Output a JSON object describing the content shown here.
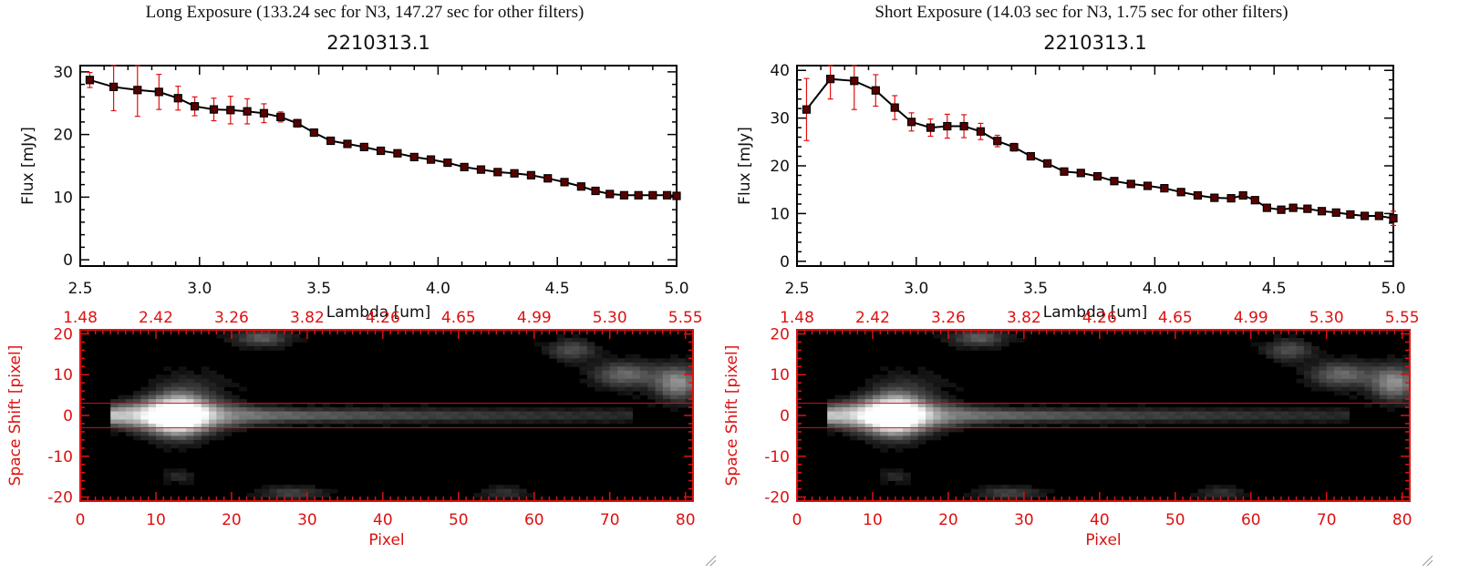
{
  "panels": [
    {
      "header": "Long Exposure (133.24 sec for N3, 147.27 sec for other filters)"
    },
    {
      "header": "Short Exposure (14.03 sec for N3, 1.75 sec for other filters)"
    }
  ],
  "colors": {
    "spectrum_line": "#000000",
    "marker": "#5a0000",
    "error_bar": "#e01010",
    "image_axes": "#dd1111",
    "aperture_line": "#dd1111"
  },
  "chart_data": [
    {
      "type": "line",
      "title": "2210313.1",
      "xlabel": "Lambda [um]",
      "ylabel": "Flux [mJy]",
      "xlim": [
        2.5,
        5.0
      ],
      "ylim": [
        -1,
        31
      ],
      "x_ticks": [
        "2.5",
        "3.0",
        "3.5",
        "4.0",
        "4.5",
        "5.0"
      ],
      "y_ticks": [
        "0",
        "10",
        "20",
        "30"
      ],
      "series": [
        {
          "x": [
            2.54,
            2.64,
            2.74,
            2.83,
            2.91,
            2.98,
            3.06,
            3.13,
            3.2,
            3.27,
            3.34,
            3.41,
            3.48,
            3.55,
            3.62,
            3.69,
            3.76,
            3.83,
            3.9,
            3.97,
            4.04,
            4.11,
            4.18,
            4.25,
            4.32,
            4.39,
            4.46,
            4.53,
            4.6,
            4.66,
            4.72,
            4.78,
            4.84,
            4.9,
            4.96,
            5.0
          ],
          "y": [
            28.7,
            27.6,
            27.1,
            26.8,
            25.8,
            24.5,
            24.0,
            23.9,
            23.7,
            23.4,
            22.8,
            21.8,
            20.3,
            19.0,
            18.5,
            18.0,
            17.4,
            17.0,
            16.4,
            16.0,
            15.5,
            14.8,
            14.4,
            14.0,
            13.8,
            13.5,
            13.0,
            12.4,
            11.7,
            11.0,
            10.5,
            10.3,
            10.3,
            10.3,
            10.3,
            10.2
          ],
          "err": [
            1.2,
            3.8,
            4.2,
            2.8,
            1.9,
            1.5,
            1.8,
            2.2,
            2.0,
            1.5,
            0.8,
            0.6,
            0.5,
            0.4,
            0.4,
            0.3,
            0.3,
            0.3,
            0.3,
            0.3,
            0.3,
            0.3,
            0.3,
            0.3,
            0.3,
            0.3,
            0.3,
            0.3,
            0.3,
            0.3,
            0.3,
            0.3,
            0.3,
            0.3,
            0.3,
            0.3
          ]
        }
      ]
    },
    {
      "type": "line",
      "title": "2210313.1",
      "xlabel": "Lambda [um]",
      "ylabel": "Flux [mJy]",
      "xlim": [
        2.5,
        5.0
      ],
      "ylim": [
        -1,
        41
      ],
      "x_ticks": [
        "2.5",
        "3.0",
        "3.5",
        "4.0",
        "4.5",
        "5.0"
      ],
      "y_ticks": [
        "0",
        "10",
        "20",
        "30",
        "40"
      ],
      "series": [
        {
          "x": [
            2.54,
            2.64,
            2.74,
            2.83,
            2.91,
            2.98,
            3.06,
            3.13,
            3.2,
            3.27,
            3.34,
            3.41,
            3.48,
            3.55,
            3.62,
            3.69,
            3.76,
            3.83,
            3.9,
            3.97,
            4.04,
            4.11,
            4.18,
            4.25,
            4.32,
            4.37,
            4.42,
            4.47,
            4.53,
            4.58,
            4.64,
            4.7,
            4.76,
            4.82,
            4.88,
            4.94,
            5.0
          ],
          "y": [
            31.8,
            38.2,
            37.8,
            35.8,
            32.2,
            29.2,
            28.0,
            28.3,
            28.3,
            27.2,
            25.2,
            23.9,
            22.0,
            20.5,
            18.8,
            18.5,
            17.8,
            16.8,
            16.2,
            15.8,
            15.3,
            14.5,
            13.8,
            13.3,
            13.2,
            13.8,
            12.8,
            11.2,
            10.8,
            11.2,
            11.0,
            10.5,
            10.2,
            9.8,
            9.5,
            9.5,
            9.0
          ],
          "err": [
            6.5,
            4.2,
            6.0,
            3.3,
            2.5,
            1.9,
            1.8,
            2.5,
            2.4,
            1.7,
            1.2,
            0.8,
            0.6,
            0.5,
            0.5,
            0.5,
            0.5,
            0.5,
            0.5,
            0.5,
            0.5,
            0.5,
            0.5,
            0.5,
            0.5,
            0.5,
            0.5,
            0.5,
            0.5,
            0.5,
            0.5,
            0.5,
            0.5,
            0.5,
            0.5,
            0.5,
            1.5
          ]
        }
      ]
    },
    {
      "type": "heatmap",
      "xlabel": "Pixel",
      "ylabel": "Space Shift [pixel]",
      "xlim": [
        0,
        81
      ],
      "ylim": [
        -21,
        21
      ],
      "x_ticks": [
        "0",
        "10",
        "20",
        "30",
        "40",
        "50",
        "60",
        "70",
        "80"
      ],
      "y_ticks": [
        "-20",
        "-10",
        "0",
        "10",
        "20"
      ],
      "top_ticks": [
        "1.48",
        "2.42",
        "3.26",
        "3.82",
        "4.26",
        "4.65",
        "4.99",
        "5.30",
        "5.55"
      ],
      "aperture_rows": [
        -3,
        3
      ]
    },
    {
      "type": "heatmap",
      "xlabel": "Pixel",
      "ylabel": "Space Shift [pixel]",
      "xlim": [
        0,
        81
      ],
      "ylim": [
        -21,
        21
      ],
      "x_ticks": [
        "0",
        "10",
        "20",
        "30",
        "40",
        "50",
        "60",
        "70",
        "80"
      ],
      "y_ticks": [
        "-20",
        "-10",
        "0",
        "10",
        "20"
      ],
      "top_ticks": [
        "1.48",
        "2.42",
        "3.26",
        "3.82",
        "4.26",
        "4.65",
        "4.99",
        "5.30",
        "5.55"
      ],
      "aperture_rows": [
        -3,
        3
      ]
    }
  ]
}
